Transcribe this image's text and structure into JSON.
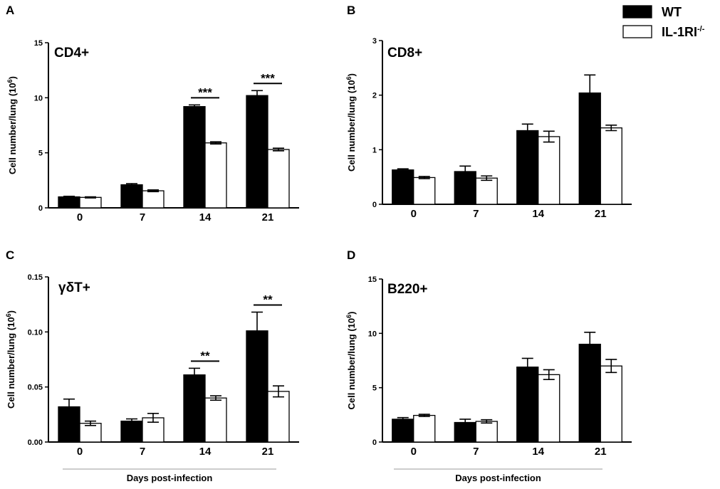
{
  "legend": [
    {
      "label": "WT",
      "fill": "#000000",
      "superscript": ""
    },
    {
      "label": "IL-1RI",
      "fill": "#ffffff",
      "superscript": "-/-"
    }
  ],
  "colors": {
    "wt": "#000000",
    "ko": "#ffffff",
    "stroke": "#000000",
    "baseline": "#999999"
  },
  "chart_data": [
    {
      "id": "A",
      "type": "bar",
      "letter": "A",
      "title": "CD4+",
      "ylabel": "Cell number/lung (10",
      "ylabel_sup": "6",
      "ylabel_end": ")",
      "xlabel": "",
      "categories": [
        "0",
        "7",
        "14",
        "21"
      ],
      "ylim": [
        0,
        15
      ],
      "yticks": [
        0,
        5,
        10,
        15
      ],
      "ytick_labels": [
        "0",
        "5",
        "10",
        "15"
      ],
      "series": [
        {
          "name": "WT",
          "values": [
            1.0,
            2.1,
            9.2,
            10.2
          ],
          "errors": [
            0.05,
            0.1,
            0.15,
            0.45
          ]
        },
        {
          "name": "IL-1RI-/-",
          "values": [
            0.95,
            1.55,
            5.9,
            5.3
          ],
          "errors": [
            0.05,
            0.08,
            0.1,
            0.12
          ]
        }
      ],
      "significance": [
        {
          "category": "14",
          "label": "***"
        },
        {
          "category": "21",
          "label": "***"
        }
      ]
    },
    {
      "id": "B",
      "type": "bar",
      "letter": "B",
      "title": "CD8+",
      "ylabel": "Cell number/lung (10",
      "ylabel_sup": "6",
      "ylabel_end": ")",
      "xlabel": "",
      "categories": [
        "0",
        "7",
        "14",
        "21"
      ],
      "ylim": [
        0,
        3
      ],
      "yticks": [
        0,
        1,
        2,
        3
      ],
      "ytick_labels": [
        "0",
        "1",
        "2",
        "3"
      ],
      "series": [
        {
          "name": "WT",
          "values": [
            0.63,
            0.6,
            1.35,
            2.04
          ],
          "errors": [
            0.02,
            0.1,
            0.12,
            0.33
          ]
        },
        {
          "name": "IL-1RI-/-",
          "values": [
            0.49,
            0.48,
            1.24,
            1.4
          ],
          "errors": [
            0.02,
            0.04,
            0.1,
            0.05
          ]
        }
      ],
      "significance": []
    },
    {
      "id": "C",
      "type": "bar",
      "letter": "C",
      "title": "γδT+",
      "ylabel": "Cell number/lung (10",
      "ylabel_sup": "6",
      "ylabel_end": ")",
      "xlabel": "Days post-infection",
      "categories": [
        "0",
        "7",
        "14",
        "21"
      ],
      "ylim": [
        0,
        0.15
      ],
      "yticks": [
        0,
        0.05,
        0.1,
        0.15
      ],
      "ytick_labels": [
        "0.00",
        "0.05",
        "0.10",
        "0.15"
      ],
      "series": [
        {
          "name": "WT",
          "values": [
            0.032,
            0.019,
            0.061,
            0.101
          ],
          "errors": [
            0.007,
            0.002,
            0.006,
            0.017
          ]
        },
        {
          "name": "IL-1RI-/-",
          "values": [
            0.017,
            0.022,
            0.04,
            0.046
          ],
          "errors": [
            0.002,
            0.004,
            0.002,
            0.005
          ]
        }
      ],
      "significance": [
        {
          "category": "14",
          "label": "**"
        },
        {
          "category": "21",
          "label": "**"
        }
      ]
    },
    {
      "id": "D",
      "type": "bar",
      "letter": "D",
      "title": "B220+",
      "ylabel": "Cell number/lung (10",
      "ylabel_sup": "6",
      "ylabel_end": ")",
      "xlabel": "Days post-infection",
      "categories": [
        "0",
        "7",
        "14",
        "21"
      ],
      "ylim": [
        0,
        15
      ],
      "yticks": [
        0,
        5,
        10,
        15
      ],
      "ytick_labels": [
        "0",
        "5",
        "10",
        "15"
      ],
      "series": [
        {
          "name": "WT",
          "values": [
            2.1,
            1.8,
            6.9,
            9.0
          ],
          "errors": [
            0.15,
            0.3,
            0.8,
            1.1
          ]
        },
        {
          "name": "IL-1RI-/-",
          "values": [
            2.45,
            1.9,
            6.2,
            7.0
          ],
          "errors": [
            0.1,
            0.15,
            0.45,
            0.6
          ]
        }
      ],
      "significance": []
    }
  ]
}
